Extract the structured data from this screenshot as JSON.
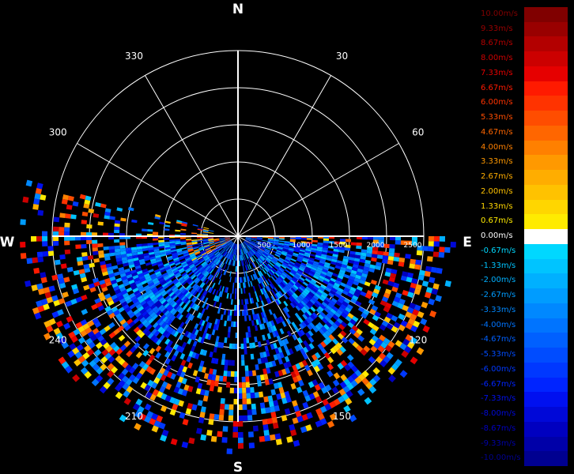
{
  "chart_data": {
    "type": "polar-radar",
    "compass": {
      "north": "N",
      "south": "S",
      "east": "E",
      "west": "W"
    },
    "angle_labels": [
      {
        "deg": 30,
        "text": "30"
      },
      {
        "deg": 60,
        "text": "60"
      },
      {
        "deg": 120,
        "text": "120"
      },
      {
        "deg": 150,
        "text": "150"
      },
      {
        "deg": 210,
        "text": "210"
      },
      {
        "deg": 240,
        "text": "240"
      },
      {
        "deg": 300,
        "text": "300"
      },
      {
        "deg": 330,
        "text": "330"
      }
    ],
    "range_labels": [
      "500",
      "1000",
      "1500",
      "2000",
      "2500"
    ],
    "range_max": 2500,
    "scan_sector": {
      "from_deg": 90,
      "to_deg": 270
    },
    "colorbar": [
      {
        "label": "10.00m/s",
        "color": "#800000"
      },
      {
        "label": "9.33m/s",
        "color": "#990000"
      },
      {
        "label": "8.67m/s",
        "color": "#b30000"
      },
      {
        "label": "8.00m/s",
        "color": "#cc0000"
      },
      {
        "label": "7.33m/s",
        "color": "#e60000"
      },
      {
        "label": "6.67m/s",
        "color": "#ff1a00"
      },
      {
        "label": "6.00m/s",
        "color": "#ff3300"
      },
      {
        "label": "5.33m/s",
        "color": "#ff4d00"
      },
      {
        "label": "4.67m/s",
        "color": "#ff6600"
      },
      {
        "label": "4.00m/s",
        "color": "#ff8000"
      },
      {
        "label": "3.33m/s",
        "color": "#ff9900"
      },
      {
        "label": "2.67m/s",
        "color": "#ffad00"
      },
      {
        "label": "2.00m/s",
        "color": "#ffc200"
      },
      {
        "label": "1.33m/s",
        "color": "#ffd600"
      },
      {
        "label": "0.67m/s",
        "color": "#ffeb00"
      },
      {
        "label": "0.00m/s",
        "color": "#ffffff"
      },
      {
        "label": "-0.67m/s",
        "color": "#00d8ff"
      },
      {
        "label": "-1.33m/s",
        "color": "#00c4ff"
      },
      {
        "label": "-2.00m/s",
        "color": "#00b0ff"
      },
      {
        "label": "-2.67m/s",
        "color": "#009cff"
      },
      {
        "label": "-3.33m/s",
        "color": "#0088ff"
      },
      {
        "label": "-4.00m/s",
        "color": "#0074ff"
      },
      {
        "label": "-4.67m/s",
        "color": "#0060ff"
      },
      {
        "label": "-5.33m/s",
        "color": "#004cff"
      },
      {
        "label": "-6.00m/s",
        "color": "#0038ff"
      },
      {
        "label": "-6.67m/s",
        "color": "#0024ff"
      },
      {
        "label": "-7.33m/s",
        "color": "#0010f0"
      },
      {
        "label": "-8.00m/s",
        "color": "#0008d8"
      },
      {
        "label": "-8.67m/s",
        "color": "#0000c0"
      },
      {
        "label": "-9.33m/s",
        "color": "#0000a8"
      },
      {
        "label": "-10.00m/s",
        "color": "#000090"
      }
    ]
  }
}
